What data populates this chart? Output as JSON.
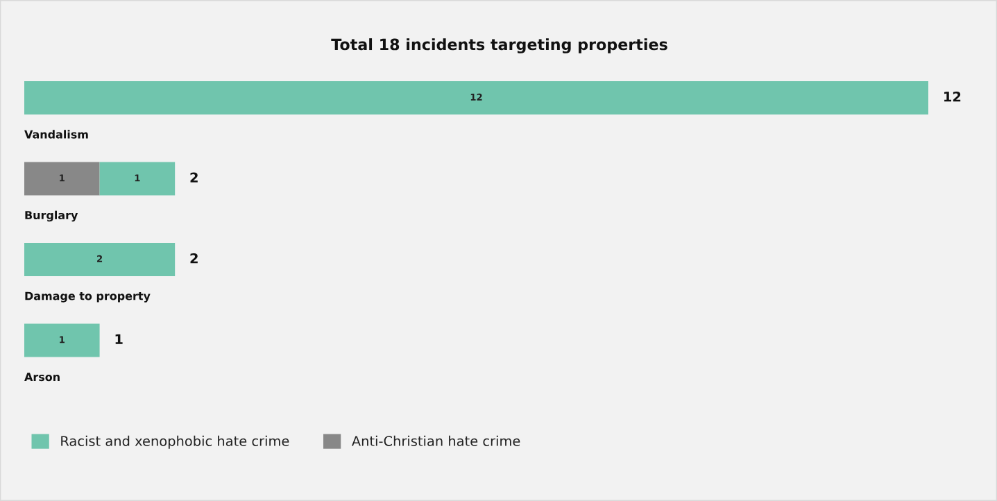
{
  "chart_data": {
    "type": "bar",
    "orientation": "horizontal",
    "stacked": true,
    "title": "Total 18 incidents targeting properties",
    "categories": [
      "Vandalism",
      "Burglary",
      "Damage to property",
      "Arson"
    ],
    "series": [
      {
        "name": "Anti-Christian hate crime",
        "color": "#888888",
        "values": [
          null,
          1,
          null,
          null
        ]
      },
      {
        "name": "Racist and xenophobic hate crime",
        "color": "#70c5ad",
        "values": [
          12,
          1,
          2,
          1
        ]
      }
    ],
    "data_labels": true,
    "totals": [
      "12",
      "2",
      "2",
      "1"
    ],
    "legend": "bottom"
  }
}
